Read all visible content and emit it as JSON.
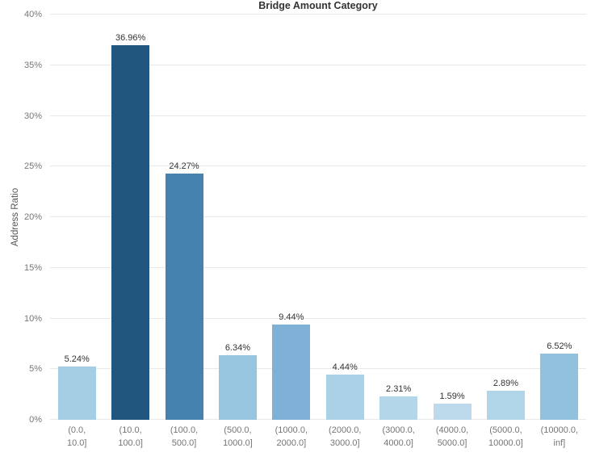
{
  "chart_data": {
    "type": "bar",
    "title": "Bridge Amount Category",
    "xlabel": "",
    "ylabel": "Address Ratio",
    "ylim": [
      0,
      40
    ],
    "ytick_step": 5,
    "ytick_labels": [
      "0%",
      "5%",
      "10%",
      "15%",
      "20%",
      "25%",
      "30%",
      "35%",
      "40%"
    ],
    "grid": true,
    "legend": false,
    "categories": [
      "(0.0, 10.0]",
      "(10.0, 100.0]",
      "(100.0, 500.0]",
      "(500.0, 1000.0]",
      "(1000.0, 2000.0]",
      "(2000.0, 3000.0]",
      "(3000.0, 4000.0]",
      "(4000.0, 5000.0]",
      "(5000.0, 10000.0]",
      "(10000.0, inf]"
    ],
    "category_lines": [
      [
        "(0.0,",
        "10.0]"
      ],
      [
        "(10.0,",
        "100.0]"
      ],
      [
        "(100.0,",
        "500.0]"
      ],
      [
        "(500.0,",
        "1000.0]"
      ],
      [
        "(1000.0,",
        "2000.0]"
      ],
      [
        "(2000.0,",
        "3000.0]"
      ],
      [
        "(3000.0,",
        "4000.0]"
      ],
      [
        "(4000.0,",
        "5000.0]"
      ],
      [
        "(5000.0,",
        "10000.0]"
      ],
      [
        "(10000.0,",
        "inf]"
      ]
    ],
    "values": [
      5.24,
      36.96,
      24.27,
      6.34,
      9.44,
      4.44,
      2.31,
      1.59,
      2.89,
      6.52
    ],
    "value_labels": [
      "5.24%",
      "36.96%",
      "24.27%",
      "6.34%",
      "9.44%",
      "4.44%",
      "2.31%",
      "1.59%",
      "2.89%",
      "6.52%"
    ],
    "bar_colors": [
      "#a5cde4",
      "#21567e",
      "#4682b0",
      "#97c4de",
      "#7eb1d5",
      "#aad1e6",
      "#b4d6e9",
      "#bcdaec",
      "#b0d4e8",
      "#92c1dd"
    ],
    "grid_color": "#e9e9e9",
    "label_color": "#333333",
    "tick_color": "#767676"
  }
}
